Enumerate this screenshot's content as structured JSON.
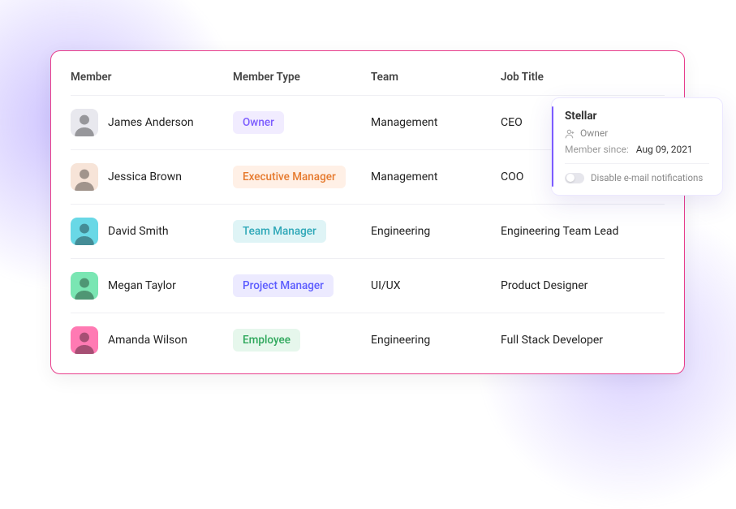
{
  "columns": {
    "member": "Member",
    "member_type": "Member Type",
    "team": "Team",
    "job_title": "Job Title"
  },
  "badge_styles": {
    "owner": {
      "bg": "#f1ecff",
      "fg": "#7c5cff"
    },
    "executive_manager": {
      "bg": "#fff0e6",
      "fg": "#e67a2e"
    },
    "team_manager": {
      "bg": "#dff4f6",
      "fg": "#2fa8b8"
    },
    "project_manager": {
      "bg": "#eceaff",
      "fg": "#5c5cff"
    },
    "employee": {
      "bg": "#e6f7ec",
      "fg": "#2fa85c"
    }
  },
  "avatar_bgs": [
    "#e8e8ee",
    "#f7e4d8",
    "#69d8e6",
    "#7ae6b3",
    "#ff7ab3"
  ],
  "rows": [
    {
      "name": "James Anderson",
      "type_label": "Owner",
      "type_key": "owner",
      "team": "Management",
      "title": "CEO"
    },
    {
      "name": "Jessica Brown",
      "type_label": "Executive Manager",
      "type_key": "executive_manager",
      "team": "Management",
      "title": "COO"
    },
    {
      "name": "David Smith",
      "type_label": "Team Manager",
      "type_key": "team_manager",
      "team": "Engineering",
      "title": "Engineering Team Lead"
    },
    {
      "name": "Megan Taylor",
      "type_label": "Project Manager",
      "type_key": "project_manager",
      "team": "UI/UX",
      "title": "Product Designer"
    },
    {
      "name": "Amanda Wilson",
      "type_label": "Employee",
      "type_key": "employee",
      "team": "Engineering",
      "title": "Full Stack Developer"
    }
  ],
  "popover": {
    "title": "Stellar",
    "role": "Owner",
    "since_label": "Member since:",
    "since_value": "Aug 09, 2021",
    "toggle_label": "Disable e-mail notifications"
  }
}
